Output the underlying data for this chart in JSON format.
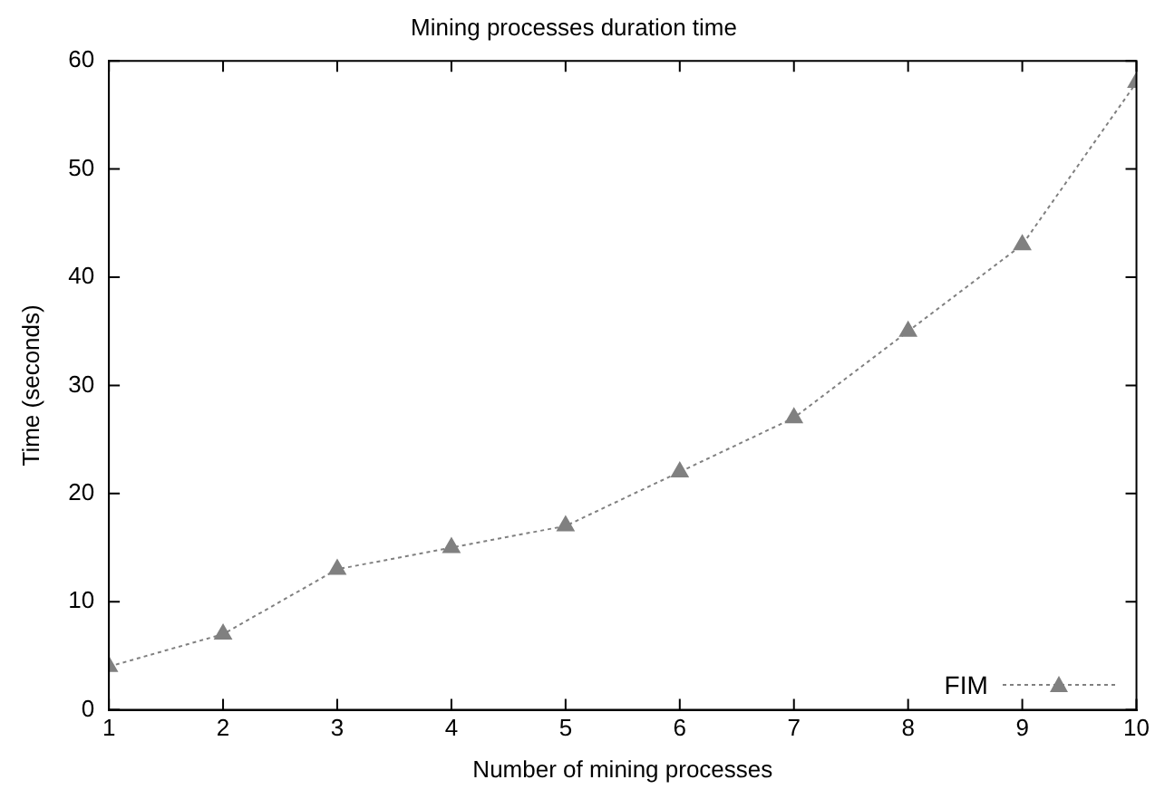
{
  "chart_data": {
    "type": "line",
    "title": "Mining processes duration time",
    "xlabel": "Number of mining processes",
    "ylabel": "Time (seconds)",
    "x": [
      1,
      2,
      3,
      4,
      5,
      6,
      7,
      8,
      9,
      10
    ],
    "series": [
      {
        "name": "FIM",
        "color": "#808080",
        "values": [
          4,
          7,
          13,
          15,
          17,
          22,
          27,
          35,
          43,
          58
        ]
      }
    ],
    "xlim": [
      1,
      10
    ],
    "xticks": [
      1,
      2,
      3,
      4,
      5,
      6,
      7,
      8,
      9,
      10
    ],
    "ylim": [
      0,
      60
    ],
    "yticks": [
      0,
      10,
      20,
      30,
      40,
      50,
      60
    ],
    "grid": false,
    "legend": "bottom right",
    "marker": "triangle",
    "line_style": "dotted"
  }
}
